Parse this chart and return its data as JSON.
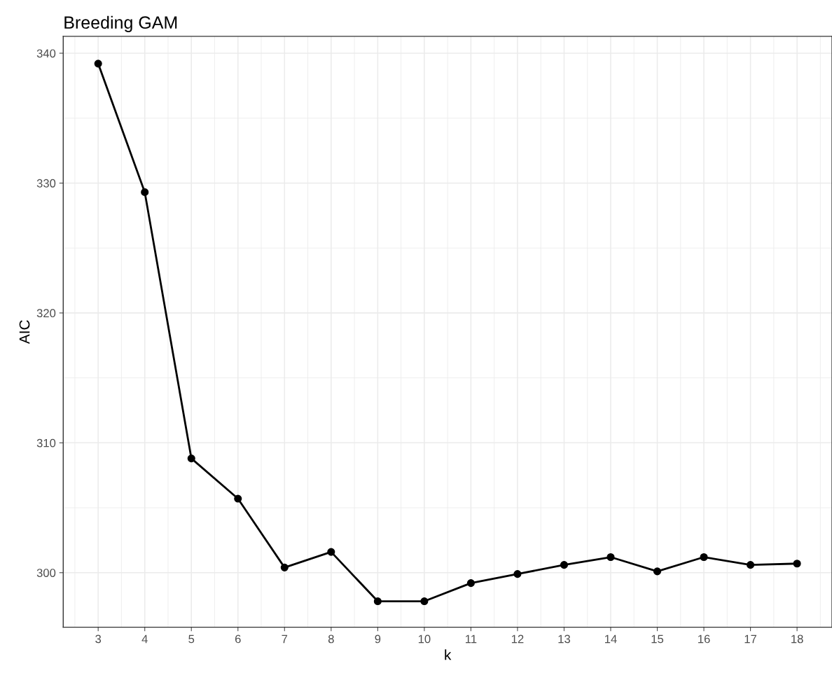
{
  "chart_data": {
    "type": "line",
    "title": "Breeding GAM",
    "xlabel": "k",
    "ylabel": "AIC",
    "x": [
      3,
      4,
      5,
      6,
      7,
      8,
      9,
      10,
      11,
      12,
      13,
      14,
      15,
      16,
      17,
      18
    ],
    "series": [
      {
        "color": "#000000",
        "values": [
          339.2,
          329.3,
          308.8,
          305.7,
          300.4,
          301.6,
          297.8,
          297.8,
          299.2,
          299.9,
          300.6,
          301.2,
          300.1,
          301.2,
          300.6,
          300.7
        ]
      }
    ],
    "xlim": [
      2.25,
      18.75
    ],
    "xticks": [
      3,
      4,
      5,
      6,
      7,
      8,
      9,
      10,
      11,
      12,
      13,
      14,
      15,
      16,
      17,
      18
    ],
    "ylim": [
      295.8,
      341.3
    ],
    "yticks": [
      300,
      310,
      320,
      330,
      340
    ],
    "grid": true,
    "marker": "circle",
    "line_style": "solid"
  }
}
